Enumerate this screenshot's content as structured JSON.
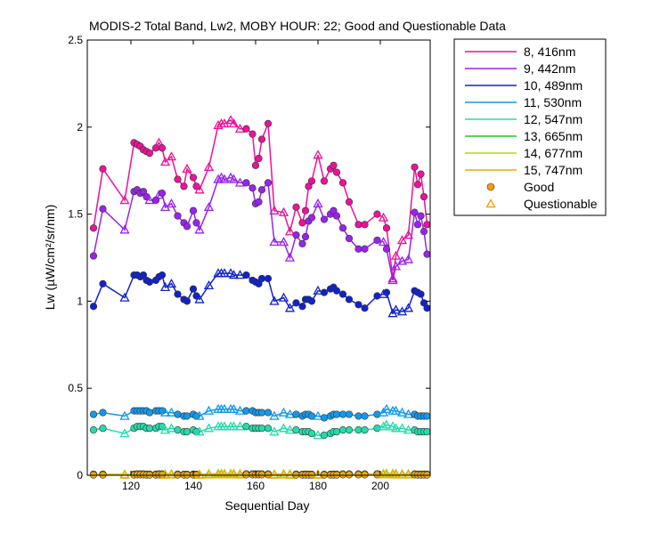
{
  "chart_data": {
    "type": "line",
    "title": "MODIS-2 Total Band,  Lw2, MOBY HOUR: 22;  Good and Questionable Data",
    "xlabel": "Sequential Day",
    "ylabel": "Lw (µW/cm²/sr/nm)",
    "xlim": [
      106,
      216
    ],
    "ylim": [
      0,
      2.5
    ],
    "xticks": [
      120,
      140,
      160,
      180,
      200
    ],
    "yticks": [
      0,
      0.5,
      1,
      1.5,
      2,
      2.5
    ],
    "ytick_labels": [
      "0",
      "0.5",
      "1",
      "1.5",
      "2",
      "2.5"
    ],
    "grid": false,
    "legend_position": "outside-right",
    "legend_markers": [
      {
        "label": "Good",
        "marker": "circle",
        "color": "#ff9900"
      },
      {
        "label": "Questionable",
        "marker": "triangle",
        "color": "#ff9900"
      }
    ],
    "x": [
      108,
      111,
      118,
      121,
      122,
      123,
      124,
      125,
      126,
      128,
      129,
      130,
      131,
      133,
      135,
      137,
      138,
      140,
      141,
      142,
      145,
      148,
      149,
      150,
      152,
      153,
      155,
      157,
      159,
      160,
      161,
      162,
      164,
      166,
      169,
      171,
      173,
      175,
      176,
      177,
      178,
      180,
      182,
      184,
      185,
      186,
      188,
      190,
      193,
      195,
      199,
      201,
      202,
      204,
      205,
      207,
      209,
      211,
      212,
      213,
      214,
      215
    ],
    "series": [
      {
        "name": "8, 416nm",
        "color": "#ee1199",
        "values": [
          1.42,
          1.76,
          1.58,
          1.91,
          1.9,
          1.89,
          1.87,
          1.86,
          1.85,
          1.88,
          1.91,
          1.88,
          1.8,
          1.83,
          1.7,
          1.66,
          1.76,
          1.71,
          1.66,
          1.64,
          1.77,
          2.01,
          2.02,
          2.02,
          2.04,
          2.02,
          1.99,
          1.99,
          1.96,
          1.78,
          1.82,
          1.93,
          2.02,
          1.52,
          1.51,
          1.4,
          1.54,
          1.45,
          1.52,
          1.66,
          1.69,
          1.84,
          1.69,
          1.76,
          1.78,
          1.74,
          1.68,
          1.57,
          1.44,
          1.44,
          1.5,
          1.48,
          1.42,
          1.13,
          1.26,
          1.35,
          1.38,
          1.77,
          1.67,
          1.73,
          1.6,
          1.44
        ],
        "questionable": [
          false,
          false,
          true,
          false,
          false,
          false,
          false,
          false,
          false,
          false,
          true,
          false,
          true,
          true,
          false,
          false,
          true,
          false,
          false,
          true,
          true,
          true,
          true,
          true,
          true,
          true,
          true,
          false,
          false,
          false,
          false,
          false,
          false,
          true,
          true,
          true,
          false,
          false,
          false,
          false,
          false,
          true,
          false,
          false,
          false,
          false,
          false,
          false,
          false,
          false,
          false,
          true,
          false,
          true,
          true,
          true,
          true,
          false,
          false,
          false,
          false,
          false
        ]
      },
      {
        "name": "9, 442nm",
        "color": "#9922ee",
        "values": [
          1.26,
          1.53,
          1.41,
          1.63,
          1.64,
          1.62,
          1.63,
          1.6,
          1.58,
          1.58,
          1.61,
          1.62,
          1.54,
          1.56,
          1.49,
          1.45,
          1.43,
          1.52,
          1.45,
          1.41,
          1.54,
          1.7,
          1.71,
          1.7,
          1.71,
          1.7,
          1.68,
          1.68,
          1.65,
          1.56,
          1.57,
          1.64,
          1.68,
          1.34,
          1.34,
          1.25,
          1.38,
          1.33,
          1.37,
          1.46,
          1.48,
          1.56,
          1.47,
          1.5,
          1.52,
          1.49,
          1.42,
          1.36,
          1.3,
          1.3,
          1.35,
          1.34,
          1.3,
          1.12,
          1.2,
          1.23,
          1.24,
          1.51,
          1.44,
          1.49,
          1.4,
          1.27
        ],
        "questionable": [
          false,
          false,
          true,
          false,
          false,
          false,
          false,
          false,
          true,
          false,
          true,
          false,
          true,
          true,
          false,
          false,
          false,
          false,
          false,
          true,
          true,
          true,
          true,
          true,
          true,
          true,
          true,
          false,
          false,
          false,
          false,
          false,
          false,
          true,
          true,
          true,
          false,
          false,
          false,
          false,
          false,
          true,
          false,
          false,
          false,
          false,
          false,
          false,
          false,
          false,
          false,
          true,
          false,
          true,
          true,
          true,
          true,
          false,
          false,
          false,
          false,
          false
        ]
      },
      {
        "name": "10, 489nm",
        "color": "#1122cc",
        "values": [
          0.97,
          1.1,
          1.02,
          1.15,
          1.15,
          1.14,
          1.15,
          1.12,
          1.11,
          1.12,
          1.14,
          1.15,
          1.08,
          1.1,
          1.04,
          1.01,
          1.0,
          1.07,
          1.03,
          1.01,
          1.09,
          1.16,
          1.16,
          1.16,
          1.16,
          1.15,
          1.15,
          1.15,
          1.12,
          1.11,
          1.1,
          1.13,
          1.13,
          1.0,
          1.02,
          0.96,
          0.99,
          0.97,
          1.01,
          1.01,
          1.0,
          1.06,
          1.05,
          1.07,
          1.08,
          1.06,
          1.04,
          1.01,
          0.98,
          0.96,
          1.03,
          1.04,
          1.05,
          0.93,
          0.95,
          0.94,
          0.96,
          1.06,
          1.05,
          1.04,
          0.99,
          0.96
        ],
        "questionable": [
          false,
          false,
          true,
          false,
          false,
          false,
          false,
          false,
          false,
          false,
          false,
          false,
          true,
          true,
          false,
          false,
          false,
          false,
          false,
          true,
          true,
          true,
          true,
          true,
          true,
          true,
          true,
          false,
          false,
          false,
          false,
          false,
          false,
          true,
          true,
          true,
          false,
          false,
          false,
          false,
          false,
          true,
          false,
          false,
          false,
          false,
          false,
          false,
          false,
          false,
          false,
          true,
          false,
          true,
          true,
          true,
          true,
          false,
          false,
          false,
          false,
          false
        ]
      },
      {
        "name": "11, 530nm",
        "color": "#1199ee",
        "values": [
          0.35,
          0.36,
          0.34,
          0.37,
          0.37,
          0.37,
          0.37,
          0.37,
          0.36,
          0.37,
          0.37,
          0.37,
          0.36,
          0.36,
          0.35,
          0.34,
          0.34,
          0.35,
          0.34,
          0.34,
          0.37,
          0.38,
          0.38,
          0.38,
          0.38,
          0.38,
          0.37,
          0.37,
          0.37,
          0.36,
          0.36,
          0.36,
          0.36,
          0.34,
          0.36,
          0.35,
          0.35,
          0.34,
          0.35,
          0.35,
          0.34,
          0.34,
          0.33,
          0.34,
          0.35,
          0.35,
          0.35,
          0.35,
          0.34,
          0.34,
          0.35,
          0.36,
          0.38,
          0.37,
          0.37,
          0.36,
          0.35,
          0.35,
          0.34,
          0.34,
          0.34,
          0.34
        ],
        "questionable": [
          false,
          false,
          true,
          false,
          false,
          false,
          false,
          false,
          false,
          false,
          false,
          false,
          true,
          true,
          false,
          false,
          false,
          false,
          false,
          true,
          true,
          true,
          true,
          true,
          true,
          true,
          true,
          false,
          false,
          false,
          false,
          false,
          false,
          true,
          true,
          true,
          false,
          false,
          false,
          false,
          false,
          true,
          false,
          false,
          false,
          false,
          false,
          false,
          false,
          false,
          false,
          true,
          true,
          true,
          true,
          true,
          true,
          false,
          false,
          false,
          false,
          false
        ]
      },
      {
        "name": "12, 547nm",
        "color": "#22ddaa",
        "values": [
          0.26,
          0.27,
          0.24,
          0.27,
          0.28,
          0.28,
          0.28,
          0.27,
          0.27,
          0.27,
          0.28,
          0.28,
          0.26,
          0.27,
          0.26,
          0.25,
          0.25,
          0.26,
          0.25,
          0.25,
          0.27,
          0.28,
          0.28,
          0.28,
          0.28,
          0.28,
          0.28,
          0.28,
          0.27,
          0.27,
          0.27,
          0.27,
          0.27,
          0.25,
          0.27,
          0.26,
          0.26,
          0.25,
          0.25,
          0.25,
          0.24,
          0.23,
          0.23,
          0.24,
          0.25,
          0.25,
          0.26,
          0.26,
          0.26,
          0.26,
          0.27,
          0.28,
          0.29,
          0.28,
          0.27,
          0.27,
          0.26,
          0.26,
          0.25,
          0.25,
          0.25,
          0.25
        ],
        "questionable": [
          false,
          false,
          true,
          false,
          false,
          false,
          false,
          false,
          false,
          false,
          false,
          false,
          true,
          true,
          false,
          false,
          false,
          false,
          false,
          true,
          true,
          true,
          true,
          true,
          true,
          true,
          true,
          false,
          false,
          false,
          false,
          false,
          false,
          true,
          true,
          true,
          false,
          false,
          false,
          false,
          false,
          true,
          false,
          false,
          false,
          false,
          false,
          false,
          false,
          false,
          false,
          true,
          true,
          true,
          true,
          true,
          true,
          false,
          false,
          false,
          false,
          false
        ]
      },
      {
        "name": "13, 665nm",
        "color": "#22cc22",
        "values": [
          0.005,
          0.005,
          0.004,
          0.005,
          0.006,
          0.006,
          0.006,
          0.005,
          0.005,
          0.005,
          0.006,
          0.006,
          0.005,
          0.006,
          0.005,
          0.004,
          0.004,
          0.005,
          0.004,
          0.004,
          0.007,
          0.008,
          0.008,
          0.008,
          0.008,
          0.008,
          0.007,
          0.007,
          0.006,
          0.006,
          0.006,
          0.006,
          0.006,
          0.005,
          0.007,
          0.005,
          0.005,
          0.004,
          0.005,
          0.005,
          0.004,
          0.004,
          0.004,
          0.004,
          0.005,
          0.005,
          0.006,
          0.006,
          0.006,
          0.006,
          0.007,
          0.008,
          0.009,
          0.008,
          0.007,
          0.006,
          0.006,
          0.006,
          0.005,
          0.005,
          0.005,
          0.005
        ],
        "questionable": [
          false,
          false,
          true,
          false,
          false,
          false,
          false,
          false,
          false,
          false,
          false,
          false,
          true,
          true,
          false,
          false,
          false,
          false,
          false,
          true,
          true,
          true,
          true,
          true,
          true,
          true,
          true,
          false,
          false,
          false,
          false,
          false,
          false,
          true,
          true,
          true,
          false,
          false,
          false,
          false,
          false,
          true,
          false,
          false,
          false,
          false,
          false,
          false,
          false,
          false,
          false,
          true,
          true,
          true,
          true,
          true,
          true,
          false,
          false,
          false,
          false,
          false
        ]
      },
      {
        "name": "14, 677nm",
        "color": "#aadd11",
        "values": [
          0.006,
          0.006,
          0.005,
          0.006,
          0.007,
          0.007,
          0.007,
          0.006,
          0.006,
          0.006,
          0.007,
          0.007,
          0.006,
          0.007,
          0.006,
          0.005,
          0.005,
          0.006,
          0.005,
          0.005,
          0.008,
          0.009,
          0.009,
          0.009,
          0.009,
          0.009,
          0.008,
          0.008,
          0.007,
          0.007,
          0.007,
          0.007,
          0.007,
          0.006,
          0.008,
          0.006,
          0.006,
          0.005,
          0.006,
          0.006,
          0.005,
          0.005,
          0.005,
          0.005,
          0.006,
          0.006,
          0.007,
          0.007,
          0.007,
          0.007,
          0.008,
          0.009,
          0.01,
          0.009,
          0.008,
          0.007,
          0.007,
          0.007,
          0.006,
          0.006,
          0.006,
          0.006
        ],
        "questionable": [
          false,
          false,
          true,
          false,
          false,
          false,
          false,
          false,
          false,
          false,
          false,
          false,
          true,
          true,
          false,
          false,
          false,
          false,
          false,
          true,
          true,
          true,
          true,
          true,
          true,
          true,
          true,
          false,
          false,
          false,
          false,
          false,
          false,
          true,
          true,
          true,
          false,
          false,
          false,
          false,
          false,
          true,
          false,
          false,
          false,
          false,
          false,
          false,
          false,
          false,
          false,
          true,
          true,
          true,
          true,
          true,
          true,
          false,
          false,
          false,
          false,
          false
        ]
      },
      {
        "name": "15, 747nm",
        "color": "#eeaa00",
        "values": [
          0.002,
          0.002,
          0.002,
          0.002,
          0.003,
          0.003,
          0.003,
          0.002,
          0.002,
          0.002,
          0.003,
          0.003,
          0.002,
          0.003,
          0.002,
          0.002,
          0.002,
          0.002,
          0.002,
          0.002,
          0.003,
          0.004,
          0.004,
          0.004,
          0.004,
          0.004,
          0.003,
          0.003,
          0.003,
          0.003,
          0.003,
          0.003,
          0.003,
          0.002,
          0.003,
          0.002,
          0.002,
          0.002,
          0.002,
          0.002,
          0.002,
          0.002,
          0.002,
          0.002,
          0.002,
          0.002,
          0.003,
          0.003,
          0.003,
          0.003,
          0.003,
          0.004,
          0.004,
          0.004,
          0.003,
          0.003,
          0.003,
          0.003,
          0.002,
          0.002,
          0.002,
          0.002
        ],
        "questionable": [
          false,
          false,
          true,
          false,
          false,
          false,
          false,
          false,
          false,
          false,
          false,
          false,
          true,
          true,
          false,
          false,
          false,
          false,
          false,
          true,
          true,
          true,
          true,
          true,
          true,
          true,
          true,
          false,
          false,
          false,
          false,
          false,
          false,
          true,
          true,
          true,
          false,
          false,
          false,
          false,
          false,
          true,
          false,
          false,
          false,
          false,
          false,
          false,
          false,
          false,
          false,
          true,
          true,
          true,
          true,
          true,
          true,
          false,
          false,
          false,
          false,
          false
        ]
      }
    ]
  }
}
